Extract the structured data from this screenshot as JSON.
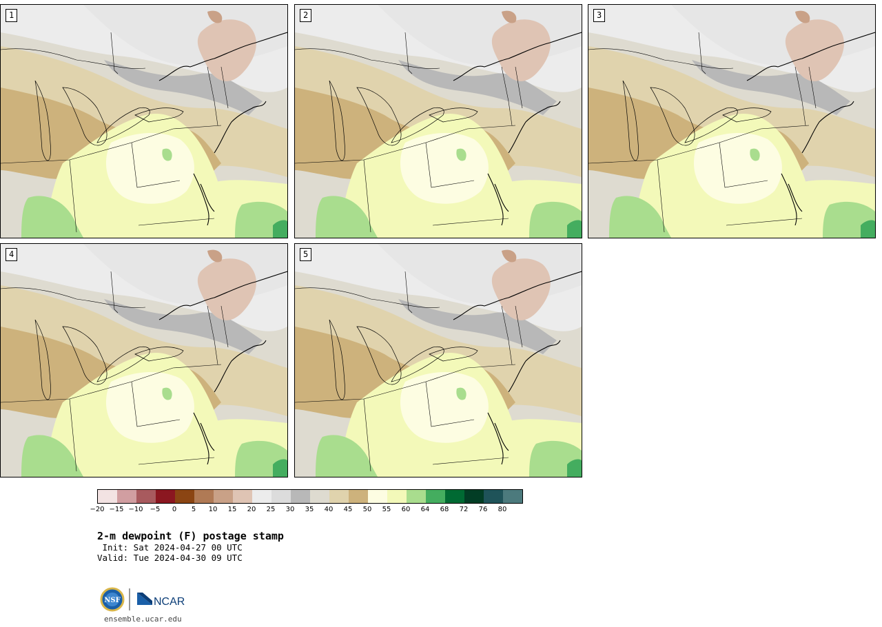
{
  "panels": [
    {
      "label": "1"
    },
    {
      "label": "2"
    },
    {
      "label": "3"
    },
    {
      "label": "4"
    },
    {
      "label": "5"
    }
  ],
  "colorbar": {
    "colors": [
      "#f3e3e3",
      "#d19ea1",
      "#a85a5e",
      "#8b1720",
      "#8b4513",
      "#b07a55",
      "#c9a187",
      "#dfc4b4",
      "#ececec",
      "#dcdcdc",
      "#b8b8b8",
      "#dedbd0",
      "#e0d3ad",
      "#cdb27c",
      "#fdfde2",
      "#f3f9b9",
      "#a9dd8e",
      "#44ad5f",
      "#006a33",
      "#023d25",
      "#1f5359",
      "#4c7a7d"
    ],
    "ticks": [
      "−20",
      "−15",
      "−10",
      "−5",
      "0",
      "5",
      "10",
      "15",
      "20",
      "25",
      "30",
      "35",
      "40",
      "45",
      "50",
      "55",
      "60",
      "64",
      "68",
      "72",
      "76",
      "80"
    ]
  },
  "title": "2-m dewpoint (F) postage stamp",
  "init_text": " Init: Sat 2024-04-27 00 UTC",
  "valid_text": "Valid: Tue 2024-04-30 09 UTC",
  "logos": {
    "nsf": "NSF",
    "ncar": "NCAR"
  },
  "site": "ensemble.ucar.edu"
}
